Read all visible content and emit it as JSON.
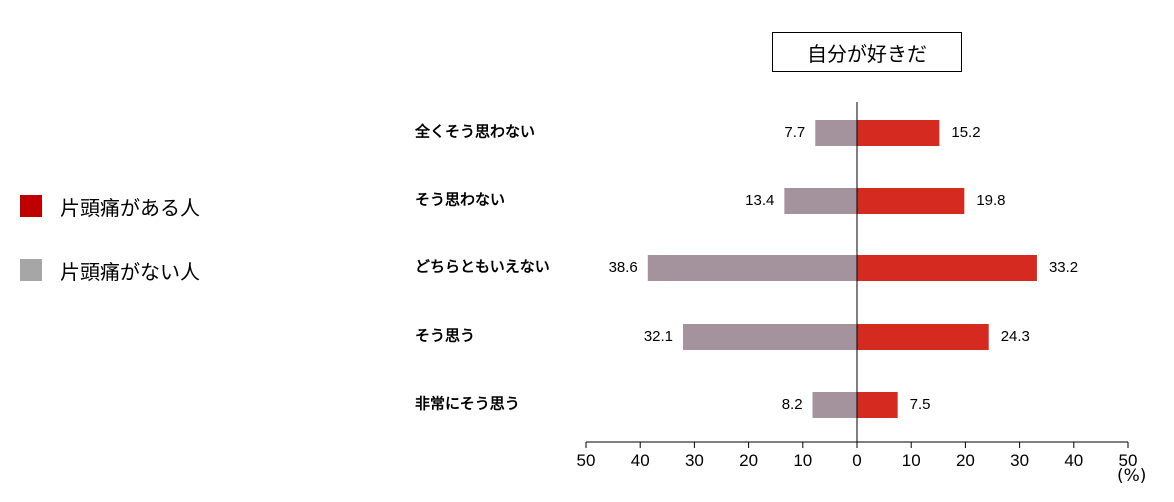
{
  "chart_data": {
    "type": "bar",
    "orientation": "horizontal-diverging",
    "title": "自分が好きだ",
    "categories": [
      "全くそう思わない",
      "そう思わない",
      "どちらともいえない",
      "そう思う",
      "非常にそう思う"
    ],
    "series": [
      {
        "name": "片頭痛がある人",
        "color": "#d42a1f",
        "direction": "right",
        "values": [
          15.2,
          19.8,
          33.2,
          24.3,
          7.5
        ]
      },
      {
        "name": "片頭痛がない人",
        "color": "#a4929c",
        "direction": "left",
        "values": [
          7.7,
          13.4,
          38.6,
          32.1,
          8.2
        ]
      }
    ],
    "xlim": [
      -50,
      50
    ],
    "xticks": [
      -50,
      -40,
      -30,
      -20,
      -10,
      0,
      10,
      20,
      30,
      40,
      50
    ],
    "xtick_labels": [
      "50",
      "40",
      "30",
      "20",
      "10",
      "0",
      "10",
      "20",
      "30",
      "40",
      "50"
    ],
    "unit": "(%)",
    "legend_position": "left",
    "grid": false
  },
  "legend": {
    "items": [
      {
        "label": "片頭痛がある人",
        "color": "#c00000"
      },
      {
        "label": "片頭痛がない人",
        "color": "#a6a6a6"
      }
    ]
  }
}
